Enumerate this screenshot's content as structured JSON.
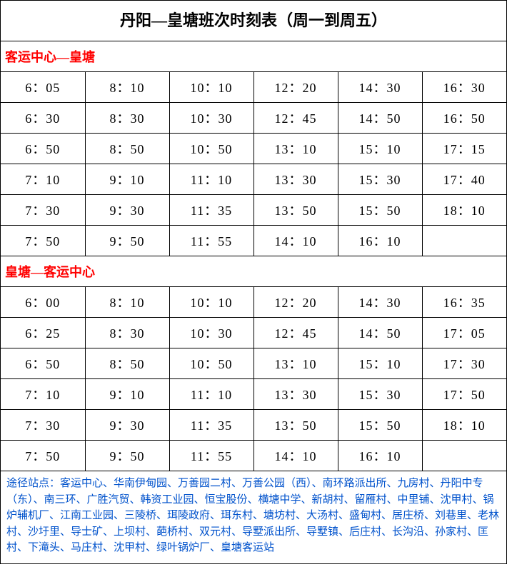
{
  "title": "丹阳—皇塘班次时刻表（周一到周五）",
  "section1": {
    "header": "客运中心—皇塘",
    "rows": [
      [
        "6：05",
        "8：10",
        "10：10",
        "12：20",
        "14：30",
        "16：30"
      ],
      [
        "6：30",
        "8：30",
        "10：30",
        "12：45",
        "14：50",
        "16：50"
      ],
      [
        "6：50",
        "8：50",
        "10：50",
        "13：10",
        "15：10",
        "17：15"
      ],
      [
        "7：10",
        "9：10",
        "11：10",
        "13：30",
        "15：30",
        "17：40"
      ],
      [
        "7：30",
        "9：30",
        "11：35",
        "13：50",
        "15：50",
        "18：10"
      ],
      [
        "7：50",
        "9：50",
        "11：55",
        "14：10",
        "16：10",
        ""
      ]
    ]
  },
  "section2": {
    "header": "皇塘—客运中心",
    "rows": [
      [
        "6：00",
        "8：10",
        "10：10",
        "12：20",
        "14：30",
        "16：35"
      ],
      [
        "6：25",
        "8：30",
        "10：30",
        "12：45",
        "14：50",
        "17：05"
      ],
      [
        "6：50",
        "8：50",
        "10：50",
        "13：10",
        "15：10",
        "17：30"
      ],
      [
        "7：10",
        "9：10",
        "11：10",
        "13：30",
        "15：30",
        "17：50"
      ],
      [
        "7：30",
        "9：30",
        "11：35",
        "13：50",
        "15：50",
        "18：10"
      ],
      [
        "7：50",
        "9：50",
        "11：55",
        "14：10",
        "16：10",
        ""
      ]
    ]
  },
  "footer": "途径站点：客运中心、华南伊甸园、万善园二村、万善公园（西）、南环路派出所、九房村、丹阳中专（东）、南三环、广胜汽贸、韩资工业园、恒宝股份、横塘中学、新胡村、留雁村、中里铺、沈甲村、锅炉辅机厂、江南工业园、三陵桥、珥陵政府、珥东村、塘坊村、大汤村、盛甸村、居庄桥、刘巷里、老林村、沙圩里、导士矿、上坝村、葩桥村、双元村、导墅派出所、导墅镇、后庄村、长沟沿、孙家村、匡村、下滝头、马庄村、沈甲村、绿叶锅炉厂、皇塘客运站",
  "colors": {
    "section_header": "#ff0000",
    "footer_text": "#0052cc",
    "border": "#000000",
    "background": "#ffffff"
  }
}
